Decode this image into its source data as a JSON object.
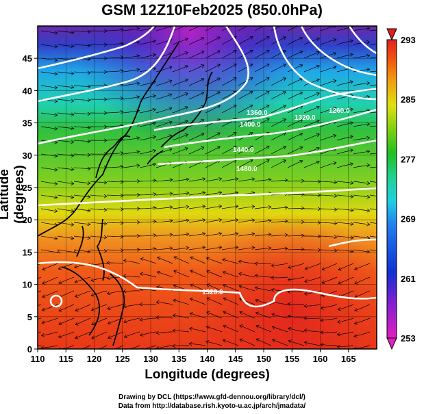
{
  "title": "GSM 12Z10Feb2025 (850.0hPa)",
  "x_axis": {
    "label": "Longitude (degrees)",
    "ticks": [
      "110",
      "115",
      "120",
      "125",
      "130",
      "135",
      "140",
      "145",
      "150",
      "155",
      "160",
      "165"
    ]
  },
  "y_axis": {
    "label": "Latitude  (degrees)",
    "ticks": [
      "0",
      "5",
      "10",
      "15",
      "20",
      "25",
      "30",
      "35",
      "40",
      "45"
    ]
  },
  "colorbar": {
    "labels": [
      "253",
      "261",
      "269",
      "277",
      "285",
      "293"
    ],
    "colors": [
      "#e020c0",
      "#8020d0",
      "#1030d0",
      "#2080f0",
      "#20d0e0",
      "#20d090",
      "#20c020",
      "#80d010",
      "#e0e010",
      "#f0a010",
      "#f05010",
      "#e02020"
    ]
  },
  "contour_labels": [
    "1360.0",
    "1400.0",
    "1440.0",
    "1480.0",
    "1520.0",
    "1320.0",
    "1260.0"
  ],
  "credits": [
    "Drawing by DCL (https://www.gfd-dennou.org/library/dcl/)",
    "Data from http://database.rish.kyoto-u.ac.jp/arch/jmadata/"
  ]
}
